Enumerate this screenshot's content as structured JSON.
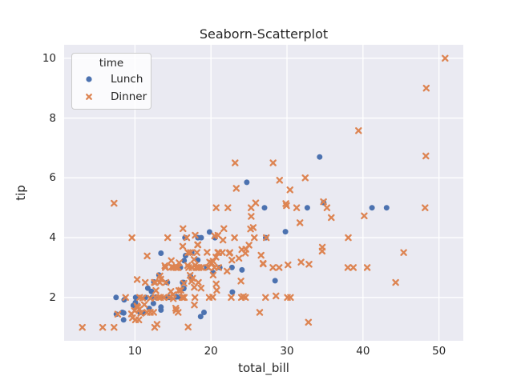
{
  "figure": {
    "background": "#ffffff"
  },
  "chart_data": {
    "type": "scatter",
    "title": "Seaborn-Scatterplot",
    "xlabel": "total_bill",
    "ylabel": "tip",
    "xlim": [
      0.68,
      53.2
    ],
    "ylim": [
      0.55,
      10.45
    ],
    "xticks": [
      10,
      20,
      30,
      40,
      50
    ],
    "yticks": [
      2,
      4,
      6,
      8,
      10
    ],
    "grid": true,
    "styles": {
      "axes_background": "#eaeaf2",
      "grid_color": "#ffffff",
      "text_color": "#262626",
      "legend_border": "#cccccc"
    },
    "legend": {
      "title": "time",
      "position": "upper left",
      "entries": [
        {
          "label": "Lunch",
          "marker": "circle",
          "color": "#4c72b0"
        },
        {
          "label": "Dinner",
          "marker": "X",
          "color": "#dd8452"
        }
      ]
    },
    "series": [
      {
        "name": "Lunch",
        "marker": "circle",
        "color": "#4c72b0",
        "points": [
          [
            27.2,
            4.0
          ],
          [
            22.76,
            3.0
          ],
          [
            17.29,
            2.71
          ],
          [
            19.44,
            3.0
          ],
          [
            16.66,
            3.4
          ],
          [
            10.07,
            1.83
          ],
          [
            32.68,
            5.0
          ],
          [
            15.98,
            2.03
          ],
          [
            34.83,
            5.17
          ],
          [
            13.03,
            2.0
          ],
          [
            18.28,
            4.0
          ],
          [
            24.71,
            5.85
          ],
          [
            21.16,
            3.0
          ],
          [
            10.65,
            1.5
          ],
          [
            12.43,
            1.8
          ],
          [
            24.08,
            2.92
          ],
          [
            11.69,
            2.31
          ],
          [
            13.42,
            1.68
          ],
          [
            14.26,
            2.5
          ],
          [
            15.95,
            2.0
          ],
          [
            12.48,
            2.52
          ],
          [
            29.8,
            4.2
          ],
          [
            8.52,
            1.48
          ],
          [
            14.52,
            2.0
          ],
          [
            11.38,
            2.0
          ],
          [
            22.82,
            2.18
          ],
          [
            19.08,
            1.5
          ],
          [
            20.27,
            2.83
          ],
          [
            11.17,
            1.5
          ],
          [
            12.26,
            2.0
          ],
          [
            18.26,
            3.25
          ],
          [
            8.51,
            1.25
          ],
          [
            10.33,
            2.0
          ],
          [
            14.15,
            2.0
          ],
          [
            16.0,
            2.0
          ],
          [
            13.16,
            2.75
          ],
          [
            17.47,
            3.5
          ],
          [
            34.3,
            6.7
          ],
          [
            41.19,
            5.0
          ],
          [
            27.05,
            5.0
          ],
          [
            16.43,
            2.3
          ],
          [
            8.35,
            1.5
          ],
          [
            18.64,
            1.36
          ],
          [
            11.87,
            1.63
          ],
          [
            9.78,
            1.73
          ],
          [
            7.51,
            2.0
          ],
          [
            19.81,
            4.19
          ],
          [
            28.44,
            2.56
          ],
          [
            15.48,
            2.02
          ],
          [
            16.58,
            4.0
          ],
          [
            7.56,
            1.44
          ],
          [
            10.34,
            2.0
          ],
          [
            43.11,
            5.0
          ],
          [
            13.0,
            2.0
          ],
          [
            13.51,
            2.0
          ],
          [
            18.71,
            4.0
          ],
          [
            12.74,
            2.01
          ],
          [
            13.0,
            2.0
          ],
          [
            16.4,
            2.5
          ],
          [
            20.53,
            4.0
          ],
          [
            16.47,
            3.23
          ],
          [
            12.16,
            2.2
          ],
          [
            13.42,
            3.48
          ],
          [
            8.58,
            1.92
          ],
          [
            15.98,
            3.0
          ],
          [
            13.42,
            1.58
          ],
          [
            16.27,
            2.5
          ],
          [
            10.09,
            2.0
          ]
        ]
      },
      {
        "name": "Dinner",
        "marker": "X",
        "color": "#dd8452",
        "points": [
          [
            16.99,
            1.01
          ],
          [
            10.34,
            1.66
          ],
          [
            21.01,
            3.5
          ],
          [
            23.68,
            3.31
          ],
          [
            24.59,
            3.61
          ],
          [
            25.29,
            4.71
          ],
          [
            8.77,
            2.0
          ],
          [
            26.88,
            3.12
          ],
          [
            15.04,
            1.96
          ],
          [
            14.78,
            3.23
          ],
          [
            10.27,
            1.71
          ],
          [
            35.26,
            5.0
          ],
          [
            15.42,
            1.57
          ],
          [
            18.43,
            3.0
          ],
          [
            14.83,
            3.02
          ],
          [
            21.58,
            3.92
          ],
          [
            10.33,
            1.67
          ],
          [
            16.29,
            3.71
          ],
          [
            16.97,
            3.5
          ],
          [
            20.65,
            3.35
          ],
          [
            17.92,
            4.08
          ],
          [
            20.29,
            2.75
          ],
          [
            15.77,
            2.23
          ],
          [
            39.42,
            7.58
          ],
          [
            19.82,
            3.18
          ],
          [
            17.81,
            2.34
          ],
          [
            13.37,
            2.0
          ],
          [
            12.69,
            2.0
          ],
          [
            21.7,
            4.3
          ],
          [
            19.65,
            3.0
          ],
          [
            9.55,
            1.45
          ],
          [
            18.35,
            2.5
          ],
          [
            15.06,
            3.0
          ],
          [
            20.69,
            2.45
          ],
          [
            17.78,
            3.27
          ],
          [
            24.06,
            3.6
          ],
          [
            16.31,
            2.0
          ],
          [
            16.93,
            3.07
          ],
          [
            18.69,
            2.31
          ],
          [
            31.27,
            5.0
          ],
          [
            16.04,
            2.24
          ],
          [
            17.46,
            2.54
          ],
          [
            13.94,
            3.06
          ],
          [
            9.68,
            1.32
          ],
          [
            30.4,
            5.6
          ],
          [
            18.29,
            3.0
          ],
          [
            22.23,
            5.0
          ],
          [
            32.4,
            6.0
          ],
          [
            28.55,
            2.05
          ],
          [
            18.04,
            3.0
          ],
          [
            12.54,
            2.5
          ],
          [
            10.29,
            2.6
          ],
          [
            34.81,
            5.2
          ],
          [
            9.94,
            1.56
          ],
          [
            25.56,
            4.34
          ],
          [
            19.49,
            3.51
          ],
          [
            38.01,
            3.0
          ],
          [
            26.41,
            1.5
          ],
          [
            11.24,
            1.76
          ],
          [
            48.27,
            6.73
          ],
          [
            20.29,
            3.21
          ],
          [
            13.81,
            2.0
          ],
          [
            11.02,
            1.98
          ],
          [
            18.29,
            3.76
          ],
          [
            17.59,
            2.64
          ],
          [
            20.08,
            3.15
          ],
          [
            16.45,
            2.47
          ],
          [
            3.07,
            1.0
          ],
          [
            20.23,
            2.01
          ],
          [
            15.01,
            2.09
          ],
          [
            12.02,
            1.97
          ],
          [
            17.07,
            3.0
          ],
          [
            26.86,
            3.14
          ],
          [
            25.28,
            5.0
          ],
          [
            14.73,
            2.2
          ],
          [
            10.51,
            1.25
          ],
          [
            17.92,
            3.08
          ],
          [
            28.97,
            3.0
          ],
          [
            22.49,
            3.5
          ],
          [
            5.75,
            1.0
          ],
          [
            16.32,
            4.3
          ],
          [
            22.75,
            3.25
          ],
          [
            40.17,
            4.73
          ],
          [
            27.28,
            4.0
          ],
          [
            12.03,
            1.5
          ],
          [
            21.01,
            3.0
          ],
          [
            12.46,
            1.5
          ],
          [
            11.35,
            2.5
          ],
          [
            15.38,
            3.0
          ],
          [
            44.3,
            2.5
          ],
          [
            22.42,
            3.48
          ],
          [
            20.92,
            4.08
          ],
          [
            15.36,
            1.64
          ],
          [
            20.49,
            4.06
          ],
          [
            25.21,
            4.29
          ],
          [
            18.24,
            3.76
          ],
          [
            14.31,
            4.0
          ],
          [
            14.0,
            3.0
          ],
          [
            7.25,
            1.0
          ],
          [
            38.07,
            4.0
          ],
          [
            23.95,
            2.55
          ],
          [
            25.71,
            4.0
          ],
          [
            17.31,
            3.5
          ],
          [
            29.93,
            5.07
          ],
          [
            14.07,
            2.5
          ],
          [
            13.13,
            2.0
          ],
          [
            17.26,
            2.74
          ],
          [
            24.55,
            2.0
          ],
          [
            19.77,
            2.0
          ],
          [
            29.85,
            5.14
          ],
          [
            48.17,
            5.0
          ],
          [
            25.0,
            3.75
          ],
          [
            13.39,
            2.61
          ],
          [
            16.49,
            2.0
          ],
          [
            21.5,
            3.5
          ],
          [
            12.66,
            2.5
          ],
          [
            16.21,
            2.0
          ],
          [
            13.81,
            2.0
          ],
          [
            17.51,
            3.0
          ],
          [
            24.52,
            3.48
          ],
          [
            20.76,
            2.24
          ],
          [
            31.71,
            4.5
          ],
          [
            10.59,
            1.61
          ],
          [
            10.63,
            2.0
          ],
          [
            50.81,
            10.0
          ],
          [
            15.81,
            3.16
          ],
          [
            7.25,
            5.15
          ],
          [
            31.85,
            3.18
          ],
          [
            16.82,
            4.0
          ],
          [
            32.9,
            3.11
          ],
          [
            17.89,
            2.0
          ],
          [
            14.48,
            2.0
          ],
          [
            9.6,
            4.0
          ],
          [
            34.63,
            3.55
          ],
          [
            34.65,
            3.68
          ],
          [
            23.33,
            5.65
          ],
          [
            45.35,
            3.5
          ],
          [
            23.17,
            6.5
          ],
          [
            40.55,
            3.0
          ],
          [
            20.69,
            5.0
          ],
          [
            20.9,
            3.5
          ],
          [
            30.46,
            2.0
          ],
          [
            18.15,
            3.5
          ],
          [
            23.1,
            4.0
          ],
          [
            15.69,
            1.5
          ],
          [
            26.59,
            3.41
          ],
          [
            38.73,
            3.0
          ],
          [
            24.27,
            2.03
          ],
          [
            12.76,
            2.23
          ],
          [
            30.06,
            2.0
          ],
          [
            25.89,
            5.16
          ],
          [
            48.33,
            9.0
          ],
          [
            13.27,
            2.5
          ],
          [
            28.17,
            6.5
          ],
          [
            12.9,
            1.1
          ],
          [
            28.15,
            3.0
          ],
          [
            11.59,
            1.5
          ],
          [
            7.74,
            1.44
          ],
          [
            30.14,
            3.09
          ],
          [
            20.45,
            3.0
          ],
          [
            13.28,
            2.72
          ],
          [
            22.12,
            2.88
          ],
          [
            24.01,
            2.0
          ],
          [
            15.69,
            3.0
          ],
          [
            11.61,
            3.39
          ],
          [
            10.77,
            1.47
          ],
          [
            15.53,
            3.0
          ],
          [
            10.07,
            1.25
          ],
          [
            12.6,
            1.0
          ],
          [
            32.83,
            1.17
          ],
          [
            35.83,
            4.67
          ],
          [
            29.03,
            5.92
          ],
          [
            27.18,
            2.0
          ],
          [
            22.67,
            2.0
          ],
          [
            17.82,
            1.75
          ],
          [
            18.78,
            3.0
          ]
        ]
      }
    ]
  }
}
